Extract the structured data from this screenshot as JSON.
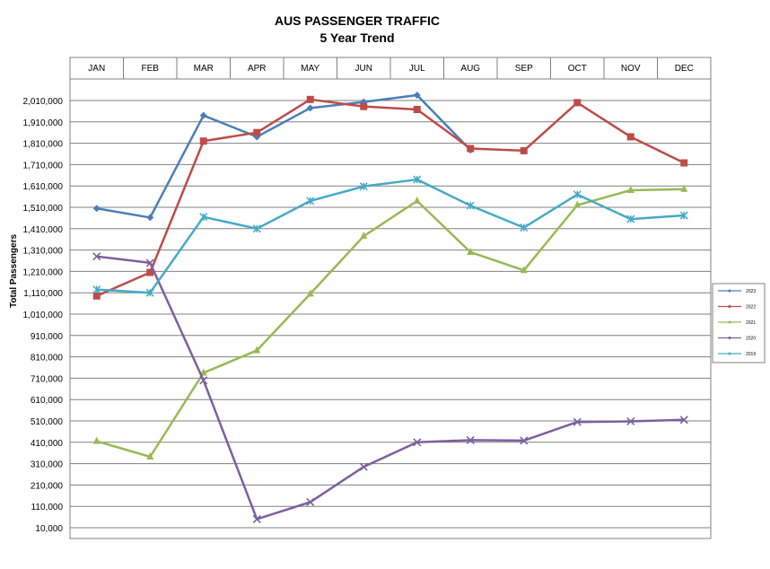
{
  "chart_data": {
    "type": "line",
    "title": "AUS PASSENGER TRAFFIC",
    "subtitle": "5 Year Trend",
    "xlabel": "",
    "ylabel": "Total Passengers",
    "categories": [
      "JAN",
      "FEB",
      "MAR",
      "APR",
      "MAY",
      "JUN",
      "JUL",
      "AUG",
      "SEP",
      "OCT",
      "NOV",
      "DEC"
    ],
    "yticks": [
      10000,
      110000,
      210000,
      310000,
      410000,
      510000,
      610000,
      710000,
      810000,
      910000,
      1010000,
      1110000,
      1210000,
      1310000,
      1410000,
      1510000,
      1610000,
      1710000,
      1810000,
      1910000,
      2010000
    ],
    "ytick_labels": [
      "10,000",
      "110,000",
      "210,000",
      "310,000",
      "410,000",
      "510,000",
      "610,000",
      "710,000",
      "810,000",
      "910,000",
      "1,010,000",
      "1,110,000",
      "1,210,000",
      "1,310,000",
      "1,410,000",
      "1,510,000",
      "1,610,000",
      "1,710,000",
      "1,810,000",
      "1,910,000",
      "2,010,000"
    ],
    "ylim": [
      10000,
      2110000
    ],
    "grid": true,
    "legend_position": "right",
    "series": [
      {
        "name": "2023",
        "color": "#4a7ebb",
        "marker": "diamond",
        "values": [
          1505000,
          1462000,
          1940000,
          1840000,
          1975000,
          2003000,
          2035000,
          1778000,
          null,
          null,
          null,
          null
        ]
      },
      {
        "name": "2022",
        "color": "#be4b48",
        "marker": "square",
        "values": [
          1095000,
          1205000,
          1820000,
          1860000,
          2015000,
          1982000,
          1968000,
          1785000,
          1775000,
          2000000,
          1840000,
          1718000
        ]
      },
      {
        "name": "2021",
        "color": "#98b954",
        "marker": "triangle",
        "values": [
          415000,
          342000,
          735000,
          840000,
          1105000,
          1375000,
          1540000,
          1300000,
          1215000,
          1520000,
          1590000,
          1595000
        ]
      },
      {
        "name": "2020",
        "color": "#7d5fa0",
        "marker": "x",
        "values": [
          1280000,
          1250000,
          700000,
          50000,
          130000,
          295000,
          410000,
          420000,
          418000,
          505000,
          508000,
          515000
        ]
      },
      {
        "name": "2019",
        "color": "#46aac5",
        "marker": "asterisk",
        "values": [
          1125000,
          1110000,
          1465000,
          1410000,
          1540000,
          1608000,
          1640000,
          1518000,
          1415000,
          1570000,
          1455000,
          1472000
        ]
      }
    ]
  }
}
